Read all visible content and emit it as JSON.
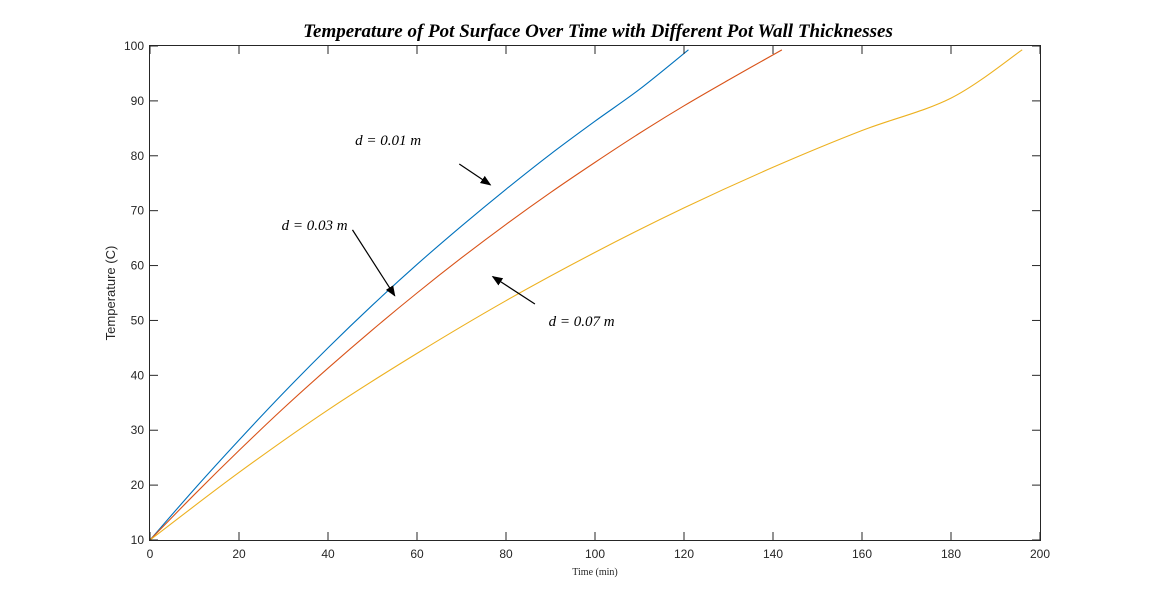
{
  "chart_data": {
    "type": "line",
    "title": "Temperature of Pot Surface Over Time with Different Pot Wall Thicknesses",
    "xlabel": "Time (min)",
    "ylabel": "Temperature (C)",
    "xlim": [
      0,
      200
    ],
    "ylim": [
      10,
      100
    ],
    "xticks": [
      0,
      20,
      40,
      60,
      80,
      100,
      120,
      140,
      160,
      180,
      200
    ],
    "yticks": [
      10,
      20,
      30,
      40,
      50,
      60,
      70,
      80,
      90,
      100
    ],
    "grid": false,
    "legend": "none",
    "series": [
      {
        "name": "d = 0.01 m",
        "color": "#0072BD",
        "x": [
          0,
          10,
          20,
          30,
          40,
          50,
          60,
          70,
          80,
          90,
          100,
          110,
          121
        ],
        "y": [
          10,
          19.3,
          28.2,
          36.8,
          45.0,
          52.8,
          60.2,
          67.2,
          73.9,
          80.3,
          86.3,
          92.1,
          99.3
        ]
      },
      {
        "name": "d = 0.03 m",
        "color": "#D95319",
        "x": [
          0,
          10,
          20,
          30,
          40,
          50,
          60,
          70,
          80,
          90,
          100,
          110,
          120,
          130,
          142
        ],
        "y": [
          10,
          18.3,
          26.3,
          34.0,
          41.3,
          48.3,
          55.0,
          61.4,
          67.5,
          73.3,
          78.8,
          84.1,
          89.1,
          93.8,
          99.3
        ]
      },
      {
        "name": "d = 0.07 m",
        "color": "#EDB120",
        "x": [
          0,
          20,
          40,
          60,
          80,
          100,
          120,
          140,
          160,
          180,
          196
        ],
        "y": [
          10,
          22.3,
          33.7,
          44.0,
          53.6,
          62.4,
          70.5,
          77.9,
          84.6,
          90.5,
          99.3
        ]
      }
    ],
    "annotations": [
      {
        "text": "d = 0.01 m",
        "label_at": [
          53.5,
          82
        ],
        "arrow_from": [
          69.5,
          78.5
        ],
        "arrow_to": [
          76.5,
          74.7
        ]
      },
      {
        "text": "d = 0.03 m",
        "label_at": [
          37,
          66.5
        ],
        "arrow_from": [
          45.5,
          66.5
        ],
        "arrow_to": [
          55,
          54.5
        ]
      },
      {
        "text": "d = 0.07 m",
        "label_at": [
          97,
          49
        ],
        "arrow_from": [
          86.5,
          53
        ],
        "arrow_to": [
          77,
          58
        ]
      }
    ]
  }
}
